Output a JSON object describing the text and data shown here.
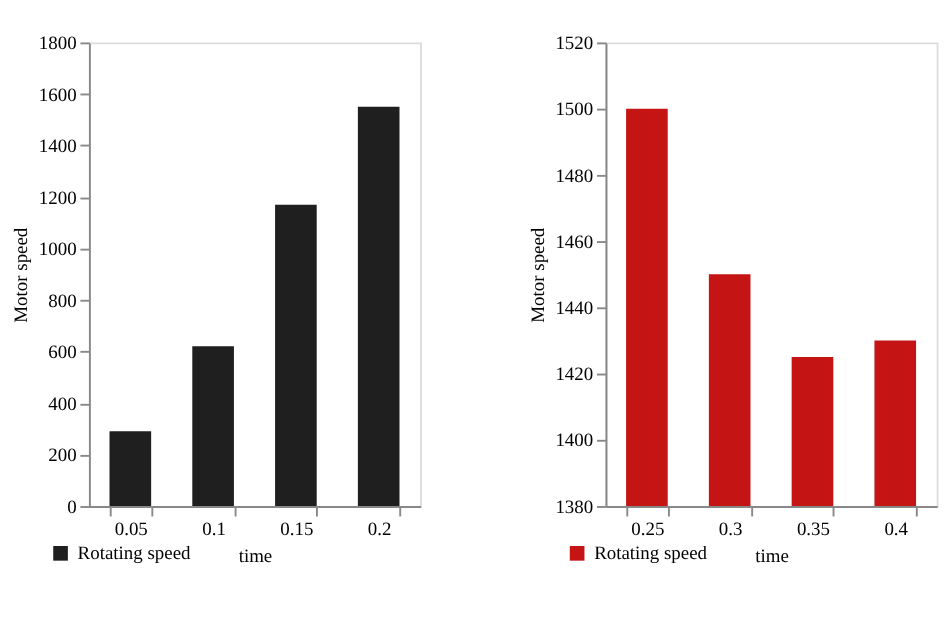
{
  "chart_data": [
    {
      "type": "bar",
      "xlabel": "time",
      "ylabel": "Motor speed",
      "categories": [
        "0.05",
        "0.1",
        "0.15",
        "0.2"
      ],
      "series": [
        {
          "name": "Rotating speed",
          "color": "#1f1f1f",
          "values": [
            290,
            620,
            1170,
            1550
          ]
        }
      ],
      "ylim": [
        0,
        1800
      ],
      "yticks": [
        0,
        200,
        400,
        600,
        800,
        1000,
        1200,
        1400,
        1600,
        1800
      ],
      "grid": false,
      "legend": "bottom left"
    },
    {
      "type": "bar",
      "xlabel": "time",
      "ylabel": "Motor speed",
      "categories": [
        "0.25",
        "0.3",
        "0.35",
        "0.4"
      ],
      "series": [
        {
          "name": "Rotating speed",
          "color": "#c41414",
          "values": [
            1500,
            1450,
            1425,
            1430
          ]
        }
      ],
      "ylim": [
        1380,
        1520
      ],
      "yticks": [
        1380,
        1400,
        1420,
        1440,
        1460,
        1480,
        1500,
        1520
      ],
      "grid": false,
      "legend": "bottom left"
    }
  ]
}
